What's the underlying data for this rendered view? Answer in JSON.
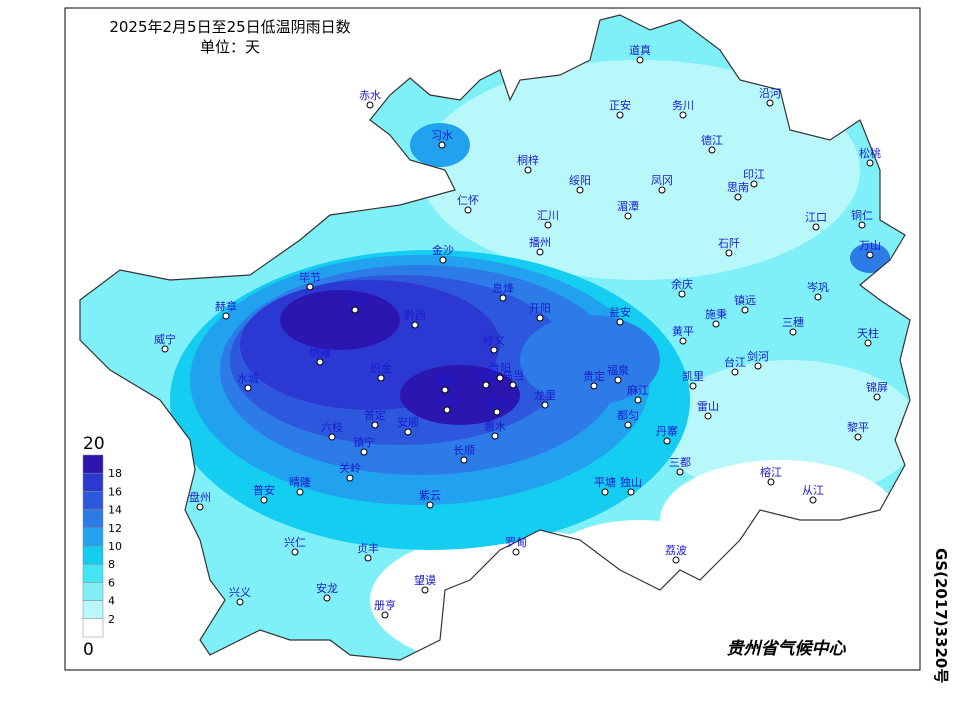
{
  "title": "2025年2月5日至25日低温阴雨日数",
  "unit": "单位：天",
  "legend": {
    "max": 20,
    "min": 0,
    "ticks": [
      18,
      16,
      14,
      12,
      10,
      8,
      6,
      4,
      2
    ],
    "colors": [
      "#2c16b0",
      "#2c38d2",
      "#2d58de",
      "#2c7be6",
      "#22a2ee",
      "#14cdf0",
      "#45e4f5",
      "#7ff0f7",
      "#b8f8fb",
      "#ffffff"
    ]
  },
  "stations": [
    "道真",
    "赤水",
    "习水",
    "正安",
    "务川",
    "沿河",
    "德江",
    "桐梓",
    "松桃",
    "印江",
    "思南",
    "绥阳",
    "凤冈",
    "仁怀",
    "湄潭",
    "江口",
    "铜仁",
    "汇川",
    "播州",
    "石阡",
    "万山",
    "金沙",
    "毕节",
    "大方",
    "黔西",
    "息烽",
    "开阳",
    "瓮安",
    "余庆",
    "施秉",
    "镇远",
    "岑巩",
    "三穗",
    "天柱",
    "赫章",
    "威宁",
    "修文",
    "纳雍",
    "织金",
    "黄平",
    "福泉",
    "台江",
    "剑河",
    "清镇",
    "白云",
    "乌当",
    "贵阳",
    "平坝",
    "花溪",
    "龙里",
    "贵定",
    "麻江",
    "凯里",
    "雷山",
    "都匀",
    "丹寨",
    "锦屏",
    "黎平",
    "水城",
    "六枝",
    "普定",
    "安顺",
    "镇宁",
    "关岭",
    "惠水",
    "长顺",
    "三都",
    "榕江",
    "从江",
    "紫云",
    "平塘",
    "独山",
    "盘州",
    "普安",
    "晴隆",
    "兴仁",
    "贞丰",
    "罗甸",
    "荔波",
    "望谟",
    "兴义",
    "安龙",
    "册亨"
  ],
  "credit": "贵州省气候中心",
  "approval": "GS(2017)3320号"
}
